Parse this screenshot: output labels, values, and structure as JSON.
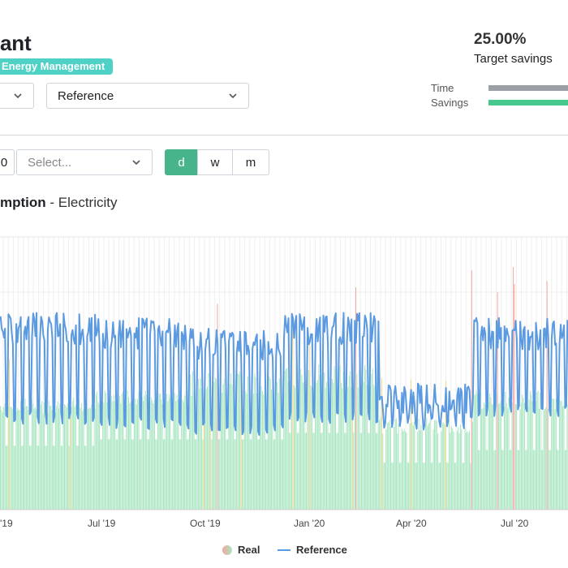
{
  "header": {
    "title": "ant",
    "badge": "Energy Management",
    "savings_value": "25.00%",
    "savings_label": "Target savings",
    "progress": [
      {
        "label": "Time",
        "color": "#9aa0a6",
        "fraction": 1.0
      },
      {
        "label": "Savings",
        "color": "#48c78e",
        "fraction": 1.0
      }
    ]
  },
  "filters": {
    "reference_select": "Reference",
    "period_select_placeholder": "Select...",
    "clipped_value": "0",
    "granularity": [
      {
        "label": "d",
        "active": true
      },
      {
        "label": "w",
        "active": false
      },
      {
        "label": "m",
        "active": false
      }
    ]
  },
  "chart_heading": {
    "main": "mption",
    "sub": " - Electricity"
  },
  "colors": {
    "accent": "#48b48b",
    "badge": "#4fd1c5",
    "real_bar": "#a8e6c1",
    "real_bar_high": "#f4a6a0",
    "real_bar_mid": "#f5d77a",
    "reference_line": "#5b9ae0"
  },
  "chart_data": {
    "type": "bar",
    "x_tick_labels": [
      "'19",
      "Jul '19",
      "Oct '19",
      "Jan '20",
      "Apr '20",
      "Jul '20"
    ],
    "legend": [
      {
        "name": "Real",
        "marker": "dot"
      },
      {
        "name": "Reference",
        "marker": "line"
      }
    ],
    "series": [
      {
        "name": "Real",
        "type": "bar",
        "note_values": "daily values, no y-axis labels visible; relative scale 0-1 estimated",
        "values_profile": [
          {
            "period": "Apr-Jun '19",
            "typical": 0.3,
            "weekday_peak": 0.42
          },
          {
            "period": "Jul-Sep '19",
            "typical": 0.33,
            "weekday_peak": 0.45
          },
          {
            "period": "Oct-Dec '19",
            "typical": 0.33,
            "weekday_peak": 0.52
          },
          {
            "period": "Jan-Mar '20",
            "typical": 0.36,
            "weekday_peak": 0.55
          },
          {
            "period": "Apr-Jun '20",
            "typical": 0.22,
            "weekday_peak": 0.35
          },
          {
            "period": "Jul-Aug '20",
            "typical": 0.28,
            "weekday_peak": 0.45
          }
        ]
      },
      {
        "name": "Reference",
        "type": "line",
        "values_profile": [
          {
            "period": "Apr-Jun '19",
            "low": 0.32,
            "high": 0.74
          },
          {
            "period": "Jul-Sep '19",
            "low": 0.3,
            "high": 0.72
          },
          {
            "period": "Oct-Dec '19",
            "low": 0.28,
            "high": 0.68
          },
          {
            "period": "Jan-Mar '20",
            "low": 0.32,
            "high": 0.74
          },
          {
            "period": "Apr-Jun '20",
            "low": 0.3,
            "high": 0.48
          },
          {
            "period": "Jul-Aug '20",
            "low": 0.35,
            "high": 0.72
          }
        ]
      }
    ],
    "grid": "vertical",
    "legend_placement": "bottom-center"
  }
}
